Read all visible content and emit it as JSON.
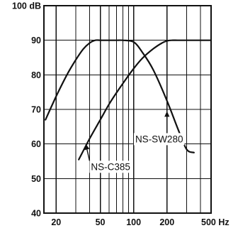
{
  "chart_data": {
    "type": "line",
    "title": "",
    "xlabel": "",
    "ylabel": "",
    "xscale": "log",
    "xlim": [
      15.5,
      500
    ],
    "ylim": [
      40,
      100
    ],
    "grid": true,
    "x_major_ticks": [
      20,
      50,
      100,
      200,
      500
    ],
    "x_minor_grid": [
      30,
      40,
      60,
      70,
      80,
      90,
      300,
      400
    ],
    "x_tick_labels": [
      "20",
      "50",
      "100",
      "200",
      "500 Hz"
    ],
    "y_ticks": [
      40,
      50,
      60,
      70,
      80,
      90,
      100
    ],
    "y_tick_labels": [
      "40",
      "50",
      "60",
      "70",
      "80",
      "90",
      "100 dB"
    ],
    "series": [
      {
        "name": "NS-SW280",
        "x": [
          16,
          20,
          25,
          30,
          35,
          40,
          45,
          50,
          60,
          70,
          80,
          100,
          120,
          150,
          200,
          250,
          300,
          350
        ],
        "y": [
          67,
          73.8,
          80,
          84.3,
          87.4,
          89.2,
          90,
          90,
          90,
          90,
          90,
          89.5,
          86.5,
          81.5,
          72.5,
          64.5,
          58.5,
          57.5
        ]
      },
      {
        "name": "NS-C385",
        "x": [
          32,
          40,
          50,
          60,
          70,
          80,
          100,
          120,
          150,
          180,
          200,
          220,
          250,
          300,
          400,
          500
        ],
        "y": [
          55.5,
          61.5,
          67,
          71.5,
          74.8,
          77.5,
          81.8,
          84.8,
          87.5,
          89.2,
          89.8,
          90,
          90,
          90,
          90,
          90
        ]
      }
    ],
    "annotations": [
      {
        "text": "NS-SW280",
        "series": "NS-SW280",
        "arrow_to": [
          200,
          69.5
        ],
        "label_at": [
          170,
          61.5
        ]
      },
      {
        "text": "NS-C385",
        "series": "NS-C385",
        "arrow_to": [
          37,
          60
        ],
        "label_at": [
          62,
          53.5
        ]
      }
    ]
  }
}
